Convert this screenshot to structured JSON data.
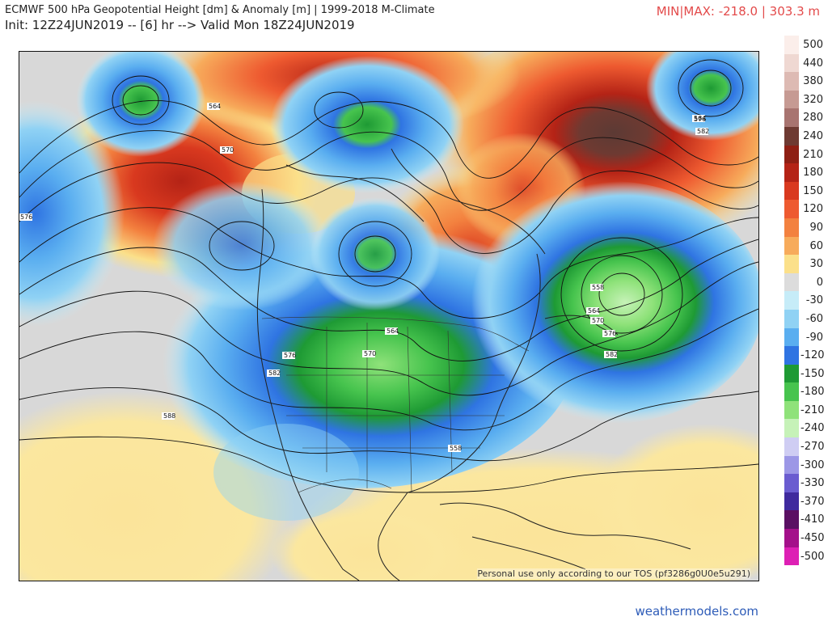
{
  "header": {
    "title": "ECMWF 500 hPa Geopotential Height [dm] & Anomaly [m] | 1999-2018 M-Climate",
    "init": "Init: 12Z24JUN2019 -- [6] hr --> Valid Mon 18Z24JUN2019",
    "minmax": "MIN|MAX: -218.0 | 303.3 m"
  },
  "map": {
    "disclaimer": "Personal use only according to our TOS (pf3286g0U0e5u291)",
    "contour_labels": [
      "564",
      "570",
      "576",
      "564",
      "576",
      "582",
      "558",
      "564",
      "570",
      "576",
      "582",
      "576",
      "582",
      "564",
      "570",
      "576",
      "582",
      "588",
      "558"
    ]
  },
  "legend": {
    "entries": [
      {
        "label": "500",
        "color": "#fbeeea"
      },
      {
        "label": "440",
        "color": "#efd8d2"
      },
      {
        "label": "380",
        "color": "#ddbab3"
      },
      {
        "label": "320",
        "color": "#c69a93"
      },
      {
        "label": "280",
        "color": "#a87470"
      },
      {
        "label": "240",
        "color": "#6e3a32"
      },
      {
        "label": "210",
        "color": "#8e1f14"
      },
      {
        "label": "180",
        "color": "#b42316"
      },
      {
        "label": "150",
        "color": "#d9391f"
      },
      {
        "label": "120",
        "color": "#ee5a30"
      },
      {
        "label": "90",
        "color": "#f3813f"
      },
      {
        "label": "60",
        "color": "#f7ab5b"
      },
      {
        "label": "30",
        "color": "#fbe08a"
      },
      {
        "label": "0",
        "color": "#dcdcdc"
      },
      {
        "label": "-30",
        "color": "#c6ecf8"
      },
      {
        "label": "-60",
        "color": "#90d2f4"
      },
      {
        "label": "-90",
        "color": "#5aaef0"
      },
      {
        "label": "-120",
        "color": "#2f74e2"
      },
      {
        "label": "-150",
        "color": "#1e9a34"
      },
      {
        "label": "-180",
        "color": "#47c44e"
      },
      {
        "label": "-210",
        "color": "#8fe27a"
      },
      {
        "label": "-240",
        "color": "#c6f2b8"
      },
      {
        "label": "-270",
        "color": "#cfcdf3"
      },
      {
        "label": "-300",
        "color": "#9c97e6"
      },
      {
        "label": "-330",
        "color": "#6a5cd0"
      },
      {
        "label": "-370",
        "color": "#3f2a9e"
      },
      {
        "label": "-410",
        "color": "#5a1063"
      },
      {
        "label": "-450",
        "color": "#a4108a"
      },
      {
        "label": "-500",
        "color": "#dd20b4"
      }
    ]
  },
  "footer": {
    "brand": "weathermodels.com"
  }
}
